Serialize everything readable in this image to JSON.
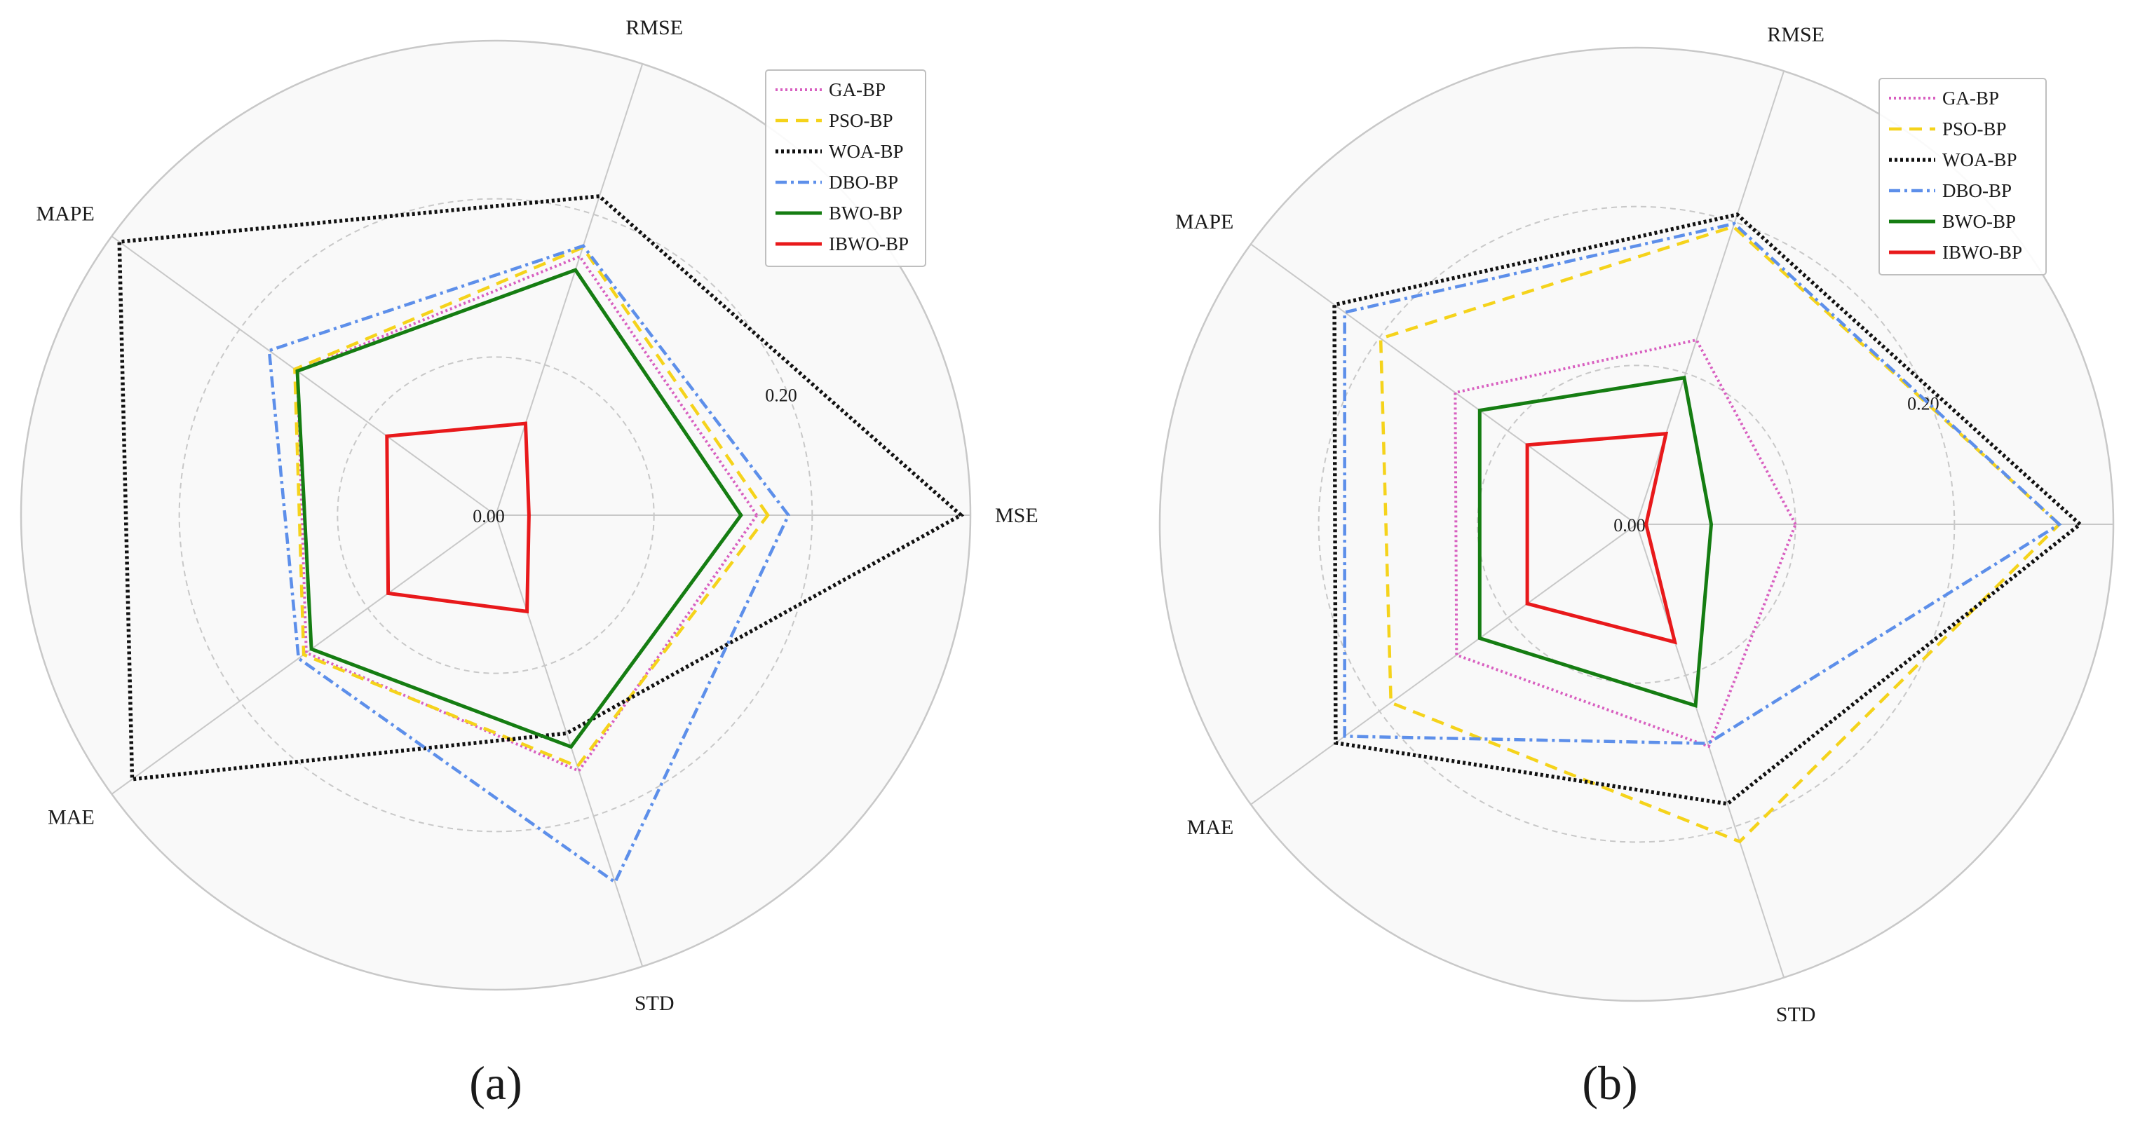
{
  "chart_data": [
    {
      "type": "radar",
      "panel_label": "(a)",
      "axes": [
        "MSE",
        "RMSE",
        "MAPE",
        "MAE",
        "STD"
      ],
      "tick_labels": [
        "0.00",
        "0.20"
      ],
      "tick_values": [
        0.0,
        0.2
      ],
      "rmax": 0.3,
      "grid_rings": [
        0.1,
        0.2
      ],
      "series": [
        {
          "name": "GA-BP",
          "values": [
            0.165,
            0.172,
            0.155,
            0.148,
            0.17
          ]
        },
        {
          "name": "PSO-BP",
          "values": [
            0.172,
            0.178,
            0.157,
            0.15,
            0.167
          ]
        },
        {
          "name": "WOA-BP",
          "values": [
            0.294,
            0.212,
            0.294,
            0.284,
            0.145
          ]
        },
        {
          "name": "DBO-BP",
          "values": [
            0.185,
            0.179,
            0.177,
            0.154,
            0.244
          ]
        },
        {
          "name": "BWO-BP",
          "values": [
            0.155,
            0.163,
            0.155,
            0.144,
            0.154
          ]
        },
        {
          "name": "IBWO-BP",
          "values": [
            0.021,
            0.061,
            0.085,
            0.084,
            0.064
          ]
        }
      ]
    },
    {
      "type": "radar",
      "panel_label": "(b)",
      "axes": [
        "MSE",
        "RMSE",
        "MAPE",
        "MAE",
        "STD"
      ],
      "tick_labels": [
        "0.00",
        "0.20"
      ],
      "tick_values": [
        0.0,
        0.2
      ],
      "rmax": 0.3,
      "grid_rings": [
        0.1,
        0.2
      ],
      "series": [
        {
          "name": "GA-BP",
          "values": [
            0.1,
            0.122,
            0.141,
            0.14,
            0.147
          ]
        },
        {
          "name": "PSO-BP",
          "values": [
            0.266,
            0.197,
            0.199,
            0.191,
            0.21
          ]
        },
        {
          "name": "WOA-BP",
          "values": [
            0.279,
            0.205,
            0.235,
            0.234,
            0.185
          ]
        },
        {
          "name": "DBO-BP",
          "values": [
            0.266,
            0.199,
            0.227,
            0.227,
            0.145
          ]
        },
        {
          "name": "BWO-BP",
          "values": [
            0.047,
            0.097,
            0.122,
            0.122,
            0.12
          ]
        },
        {
          "name": "IBWO-BP",
          "values": [
            0.006,
            0.06,
            0.085,
            0.085,
            0.078
          ]
        }
      ]
    }
  ],
  "colors": {
    "GA-BP": "#d85fc0",
    "PSO-BP": "#f5d31b",
    "WOA-BP": "#111111",
    "DBO-BP": "#5d8fea",
    "BWO-BP": "#157d12",
    "IBWO-BP": "#e8191b",
    "grid_solid": "#c8c8c8",
    "grid_dashed": "#c8c8c8",
    "plot_background": "#f9f9f9"
  }
}
